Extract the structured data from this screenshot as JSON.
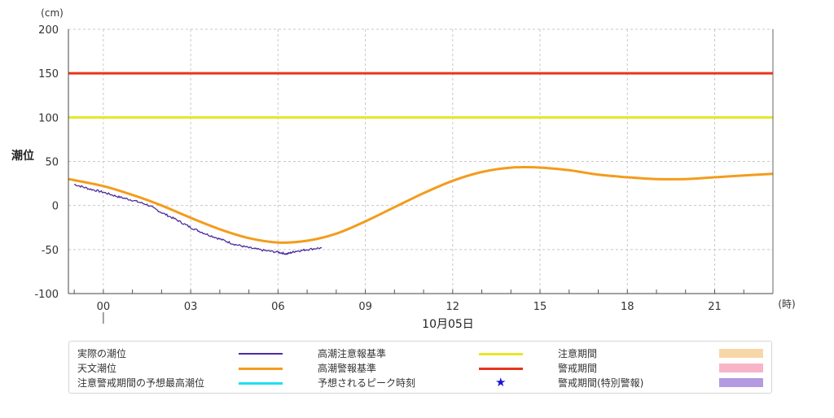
{
  "chart_data": {
    "type": "line",
    "ylabel": "潮位",
    "yunit": "(cm)",
    "xunit": "(時)",
    "date_label": "10月05日",
    "ylim": [
      -100,
      200
    ],
    "yticks": [
      200,
      150,
      100,
      50,
      0,
      -50,
      -100
    ],
    "xlim": [
      -1.2,
      23
    ],
    "xticks": [
      0,
      3,
      6,
      9,
      12,
      15,
      18,
      21
    ],
    "xtick_labels": [
      "00",
      "03",
      "06",
      "09",
      "12",
      "15",
      "18",
      "21"
    ],
    "grid": true,
    "thresholds": [
      {
        "name": "高潮警報基準",
        "value": 150,
        "color": "#e8341c"
      },
      {
        "name": "高潮注意報基準",
        "value": 100,
        "color": "#e6e62a"
      }
    ],
    "series": [
      {
        "name": "天文潮位",
        "color": "#f39c1c",
        "x": [
          -1.2,
          0,
          1,
          2,
          3,
          4,
          5,
          6,
          7,
          8,
          9,
          10,
          11,
          12,
          13,
          14,
          15,
          16,
          17,
          18,
          19,
          20,
          21,
          22,
          23
        ],
        "y": [
          30,
          22,
          12,
          0,
          -14,
          -27,
          -37,
          -42,
          -40,
          -32,
          -18,
          -2,
          14,
          28,
          38,
          43,
          43,
          40,
          35,
          32,
          30,
          30,
          32,
          34,
          36
        ]
      },
      {
        "name": "実際の潮位",
        "color": "#4b2ca0",
        "x": [
          -1,
          -0.5,
          0,
          0.5,
          1,
          1.5,
          2,
          2.5,
          3,
          3.5,
          4,
          4.5,
          5,
          5.5,
          6,
          6.3,
          6.6,
          7,
          7.5
        ],
        "y": [
          24,
          19,
          15,
          10,
          6,
          1,
          -8,
          -16,
          -25,
          -32,
          -38,
          -44,
          -48,
          -51,
          -53,
          -55,
          -52,
          -50,
          -48
        ]
      }
    ]
  },
  "legend": {
    "items": [
      {
        "label": "実際の潮位",
        "kind": "line",
        "color": "#4b2ca0",
        "weight": 2
      },
      {
        "label": "天文潮位",
        "kind": "line",
        "color": "#f39c1c",
        "weight": 3
      },
      {
        "label": "注意警戒期間の予想最高潮位",
        "kind": "line",
        "color": "#20e0f0",
        "weight": 3
      },
      {
        "label": "高潮注意報基準",
        "kind": "line",
        "color": "#e6e62a",
        "weight": 3
      },
      {
        "label": "高潮警報基準",
        "kind": "line",
        "color": "#e8341c",
        "weight": 3
      },
      {
        "label": "予想されるピーク時刻",
        "kind": "star",
        "color": "#1414d8",
        "symbol": "★"
      },
      {
        "label": "注意期間",
        "kind": "rect",
        "color": "#f7d6a8"
      },
      {
        "label": "警戒期間",
        "kind": "rect",
        "color": "#f8b4c8"
      },
      {
        "label": "警戒期間(特別警報)",
        "kind": "rect",
        "color": "#b49ae0"
      }
    ]
  }
}
